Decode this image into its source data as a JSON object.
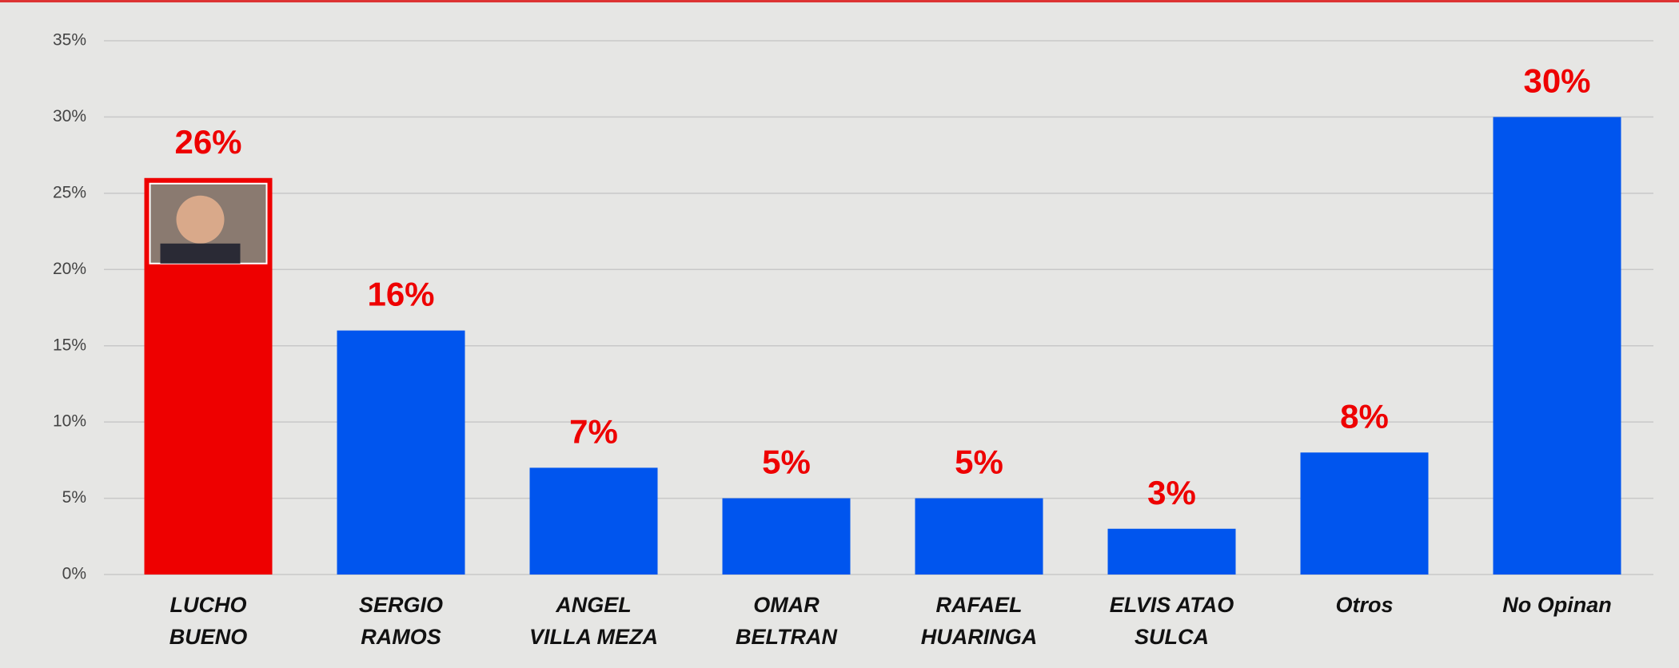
{
  "chart_data": {
    "type": "bar",
    "categories": [
      "LUCHO\nBUENO",
      "SERGIO\nRAMOS",
      "ANGEL\nVILLA MEZA",
      "OMAR\nBELTRAN",
      "RAFAEL\nHUARINGA",
      "ELVIS ATAO\nSULCA",
      "Otros",
      "No Opinan"
    ],
    "values": [
      26,
      16,
      7,
      5,
      5,
      3,
      8,
      30
    ],
    "value_labels": [
      "26%",
      "16%",
      "7%",
      "5%",
      "5%",
      "3%",
      "8%",
      "30%"
    ],
    "colors": [
      "#ee0000",
      "#0055ee",
      "#0055ee",
      "#0055ee",
      "#0055ee",
      "#0055ee",
      "#0055ee",
      "#0055ee"
    ],
    "ylim": [
      0,
      35
    ],
    "yticks": [
      {
        "value": 0,
        "label": "0%"
      },
      {
        "value": 5,
        "label": "5%"
      },
      {
        "value": 10,
        "label": "10%"
      },
      {
        "value": 15,
        "label": "15%"
      },
      {
        "value": 20,
        "label": "20%"
      },
      {
        "value": 25,
        "label": "25%"
      },
      {
        "value": 30,
        "label": "30%"
      },
      {
        "value": 35,
        "label": "35%"
      }
    ],
    "grid": true
  }
}
